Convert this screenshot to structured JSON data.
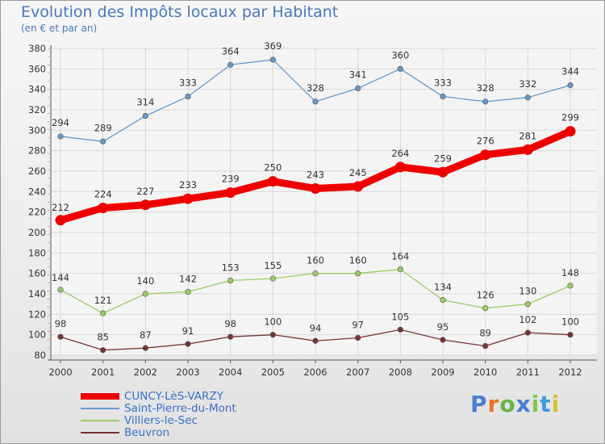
{
  "title": "Evolution des Impôts locaux par Habitant",
  "subtitle": "(en € et par an)",
  "logo": {
    "text": "Proxiti",
    "letter_colors": [
      "#4a7fd0",
      "#e8732a",
      "#6bb24a",
      "#4a7fd0",
      "#7ec84a",
      "#3a9cd8",
      "#d7c22a"
    ]
  },
  "chart_data": {
    "type": "line",
    "categories": [
      "2000",
      "2001",
      "2002",
      "2003",
      "2004",
      "2005",
      "2006",
      "2007",
      "2008",
      "2009",
      "2010",
      "2011",
      "2012"
    ],
    "ylim": [
      80,
      380
    ],
    "yticks": [
      80,
      100,
      120,
      140,
      160,
      180,
      200,
      220,
      240,
      260,
      280,
      300,
      320,
      340,
      360,
      380
    ],
    "grid": true,
    "legend_position": "bottom-left",
    "series": [
      {
        "name": "CUNCY-LèS-VARZY",
        "color": "#ee0000",
        "emphasis": true,
        "values": [
          212,
          224,
          227,
          233,
          239,
          250,
          243,
          245,
          264,
          259,
          276,
          281,
          299
        ]
      },
      {
        "name": "Saint-Pierre-du-Mont",
        "color": "#6699cc",
        "emphasis": false,
        "values": [
          294,
          289,
          314,
          333,
          364,
          369,
          328,
          341,
          360,
          333,
          328,
          332,
          344
        ]
      },
      {
        "name": "Villiers-le-Sec",
        "color": "#99cc66",
        "emphasis": false,
        "values": [
          144,
          121,
          140,
          142,
          153,
          155,
          160,
          160,
          164,
          134,
          126,
          130,
          148
        ]
      },
      {
        "name": "Beuvron",
        "color": "#773333",
        "emphasis": false,
        "values": [
          98,
          85,
          87,
          91,
          98,
          100,
          94,
          97,
          105,
          95,
          89,
          102,
          100
        ]
      }
    ]
  }
}
